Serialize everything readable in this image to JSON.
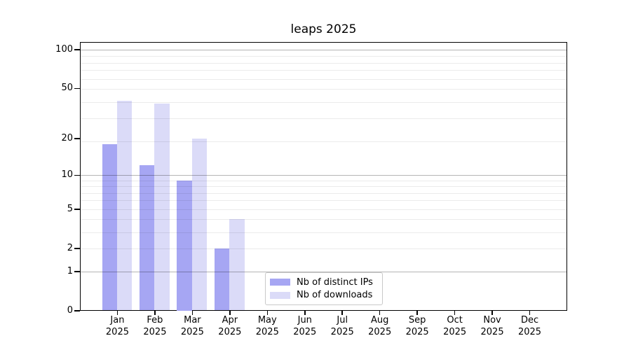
{
  "figure": {
    "background": "#ffffff"
  },
  "chart_data": {
    "type": "bar",
    "title": "leaps 2025",
    "categories": [
      "Jan",
      "Feb",
      "Mar",
      "Apr",
      "May",
      "Jun",
      "Jul",
      "Aug",
      "Sep",
      "Oct",
      "Nov",
      "Dec"
    ],
    "category_year": "2025",
    "series": [
      {
        "name": "Nb of distinct IPs",
        "color": "#a6a6f3",
        "values": [
          18,
          12,
          9,
          2,
          0,
          0,
          0,
          0,
          0,
          0,
          0,
          0
        ]
      },
      {
        "name": "Nb of downloads",
        "color": "#dbdbf8",
        "values": [
          40,
          38,
          20,
          4,
          0,
          0,
          0,
          0,
          0,
          0,
          0,
          0
        ]
      }
    ],
    "y_axis": {
      "scale": "log10(1 + value)",
      "tick_labels": [
        0,
        1,
        2,
        5,
        10,
        20,
        50,
        100
      ],
      "ylim": [
        0,
        115
      ],
      "grid": true,
      "minor_grid_u": [
        3,
        4,
        5,
        6,
        7,
        8,
        9,
        10,
        20,
        30,
        40,
        50,
        60,
        70,
        80,
        90
      ],
      "major_grid_u": [
        2,
        11,
        101
      ]
    },
    "legend": {
      "position": "lower-center",
      "entries": [
        "Nb of distinct IPs",
        "Nb of downloads"
      ]
    },
    "colors": {
      "bar_distinct_ips": "#a6a6f3",
      "bar_downloads": "#dbdbf8",
      "grid_minor": "rgba(0,0,0,0.08)",
      "grid_major": "rgba(0,0,0,0.29)",
      "axis": "#000000",
      "legend_border": "#c9c9c9"
    }
  }
}
